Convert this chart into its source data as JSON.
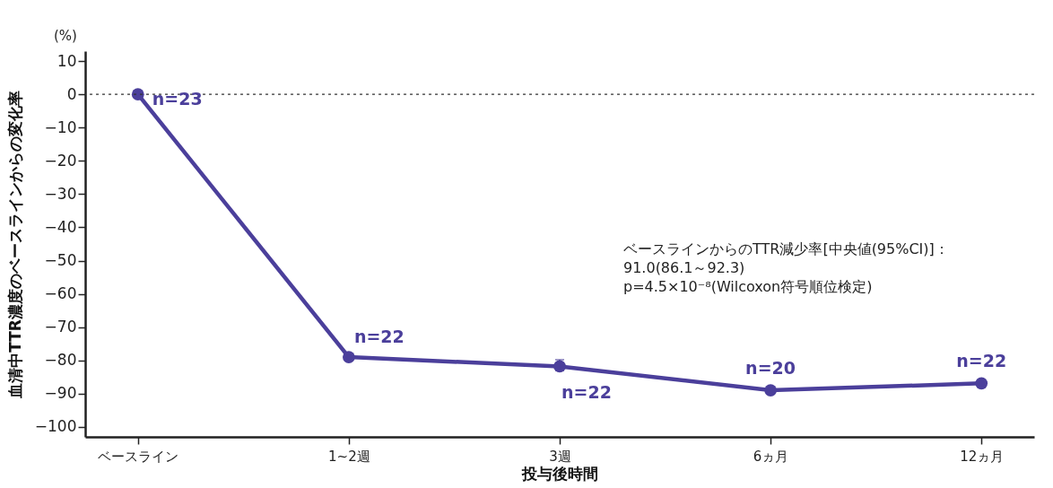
{
  "chart_data": {
    "type": "line",
    "xlabel": "投与後時間",
    "ylabel": "血清中TTR濃度のベースラインからの変化率",
    "categories": [
      "ベースライン",
      "1~2週",
      "3週",
      "6ヵ月",
      "12ヵ月"
    ],
    "series": [
      {
        "color": "#4b3f9b",
        "values": [
          0,
          -79,
          -81.8,
          -89,
          -86.9
        ],
        "errors": [
          null,
          null,
          [
            -83,
            -79.8
          ],
          null,
          null
        ]
      }
    ],
    "ylim": [
      -103,
      13
    ],
    "yticks": [
      10,
      0,
      {
        "value": -10,
        "label": "−10"
      },
      {
        "value": -20,
        "label": "−20"
      },
      {
        "value": -30,
        "label": "−30"
      },
      {
        "value": -40,
        "label": "−40"
      },
      {
        "value": -50,
        "label": "−50"
      },
      {
        "value": -60,
        "label": "−60"
      },
      {
        "value": -70,
        "label": "−70"
      },
      {
        "value": -80,
        "label": "−80"
      },
      {
        "value": -90,
        "label": "−90"
      },
      {
        "value": -100,
        "label": "−100"
      }
    ],
    "grid": false,
    "marker": "circle",
    "line_style": "solid",
    "ref_lines": [
      {
        "axis": "y",
        "value": 0,
        "color": "#333333",
        "line_style": "dotted"
      }
    ],
    "annotations": [
      {
        "text": "n=23",
        "x": "ベースライン",
        "y": 0
      },
      {
        "text": "n=22",
        "x": "1~2週",
        "y": -79
      },
      {
        "text": "n=22",
        "x": "3週",
        "y": -81.8
      },
      {
        "text": "n=20",
        "x": "6ヵ月",
        "y": -89
      },
      {
        "text": "n=22",
        "x": "12ヵ月",
        "y": -86.9
      },
      "ベースラインからのTTR減少率[中央値(95%CI)]：\n91.0(86.1～92.3)\np=4.5×10⁻⁸(Wilcoxon符号順位検定)",
      "(%)"
    ]
  }
}
